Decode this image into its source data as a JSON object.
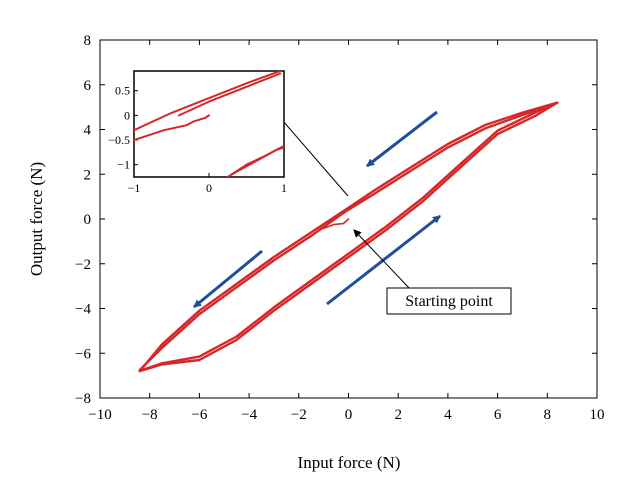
{
  "chart_data": {
    "type": "line",
    "title": "",
    "xlabel": "Input force (N)",
    "ylabel": "Output force (N)",
    "xlim": [
      -10,
      10
    ],
    "ylim": [
      -8,
      8
    ],
    "xticks": [
      -10,
      -8,
      -6,
      -4,
      -2,
      0,
      2,
      4,
      6,
      8,
      10
    ],
    "yticks": [
      -8,
      -6,
      -4,
      -2,
      0,
      2,
      4,
      6,
      8
    ],
    "xtick_labels": [
      "−10",
      "−8",
      "−6",
      "−4",
      "−2",
      "0",
      "2",
      "4",
      "6",
      "8",
      "10"
    ],
    "ytick_labels": [
      "−8",
      "−6",
      "−4",
      "−2",
      "0",
      "2",
      "4",
      "6",
      "8"
    ],
    "series_color": "#d62728",
    "arrow_color": "#1f4e9b",
    "series": [
      {
        "name": "upper branch (decreasing input)",
        "x": [
          8.4,
          7.0,
          5.5,
          4.0,
          2.5,
          1.0,
          0.0,
          -1.5,
          -3.0,
          -4.5,
          -6.0,
          -7.5,
          -8.4
        ],
        "y": [
          5.2,
          4.75,
          4.2,
          3.35,
          2.3,
          1.25,
          0.5,
          -0.6,
          -1.7,
          -2.9,
          -4.1,
          -5.6,
          -6.8
        ]
      },
      {
        "name": "upper branch repeat",
        "x": [
          8.3,
          7.0,
          5.5,
          4.0,
          2.5,
          1.0,
          -0.1,
          -1.5,
          -3.0,
          -4.5,
          -6.0,
          -7.5,
          -8.4
        ],
        "y": [
          5.15,
          4.65,
          4.05,
          3.2,
          2.15,
          1.1,
          0.35,
          -0.75,
          -1.85,
          -3.05,
          -4.25,
          -5.75,
          -6.75
        ]
      },
      {
        "name": "lower branch (increasing input)",
        "x": [
          -8.4,
          -7.5,
          -6.0,
          -4.5,
          -3.0,
          -1.5,
          0.0,
          1.5,
          3.0,
          4.5,
          6.0,
          7.5,
          8.4
        ],
        "y": [
          -6.8,
          -6.5,
          -6.3,
          -5.4,
          -4.1,
          -2.9,
          -1.7,
          -0.5,
          0.8,
          2.3,
          3.8,
          4.6,
          5.2
        ]
      },
      {
        "name": "lower branch repeat",
        "x": [
          -8.3,
          -7.5,
          -6.0,
          -4.5,
          -3.0,
          -1.5,
          0.0,
          1.5,
          3.0,
          4.5,
          6.0,
          7.5,
          8.3
        ],
        "y": [
          -6.75,
          -6.45,
          -6.15,
          -5.25,
          -3.95,
          -2.75,
          -1.55,
          -0.35,
          0.95,
          2.45,
          3.95,
          4.75,
          5.15
        ]
      },
      {
        "name": "initial loading",
        "x": [
          -1.6,
          -1.1,
          -0.6,
          -0.2,
          0.0
        ],
        "y": [
          -0.85,
          -0.45,
          -0.25,
          -0.2,
          0.0
        ]
      }
    ],
    "inset": {
      "xlim": [
        -1,
        1
      ],
      "ylim": [
        -1.25,
        0.9
      ],
      "xticks": [
        -1,
        0,
        1
      ],
      "yticks": [
        -1,
        -0.5,
        0,
        0.5
      ],
      "xtick_labels": [
        "−1",
        "0",
        "1"
      ],
      "ytick_labels": [
        "−1",
        "−0.5",
        "0",
        "0.5"
      ],
      "series": [
        {
          "x": [
            -1.0,
            -0.5,
            0.0,
            0.5,
            0.95
          ],
          "y": [
            -0.3,
            0.05,
            0.35,
            0.65,
            0.9
          ]
        },
        {
          "x": [
            -0.4,
            0.0,
            0.5,
            0.95
          ],
          "y": [
            0.0,
            0.28,
            0.58,
            0.85
          ]
        },
        {
          "x": [
            -1.0,
            -0.6,
            -0.3,
            -0.2,
            -0.05,
            0.0
          ],
          "y": [
            -0.5,
            -0.3,
            -0.2,
            -0.12,
            -0.05,
            0.0
          ]
        },
        {
          "x": [
            0.25,
            0.5,
            0.75,
            1.0
          ],
          "y": [
            -1.25,
            -1.0,
            -0.82,
            -0.62
          ]
        },
        {
          "x": [
            0.3,
            0.6,
            0.9,
            1.0
          ],
          "y": [
            -1.2,
            -0.95,
            -0.7,
            -0.65
          ]
        }
      ]
    },
    "annotations": [
      {
        "text": "Starting point",
        "target": [
          0.0,
          0.0
        ]
      }
    ]
  }
}
